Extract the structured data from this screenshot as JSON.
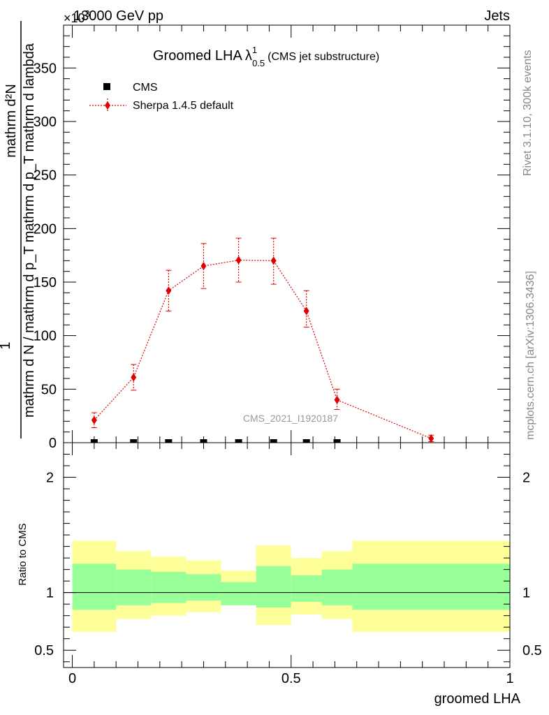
{
  "chart_data": [
    {
      "type": "scatter",
      "panel": "main",
      "title": "Groomed LHA",
      "title_symbol": "λ",
      "title_sup": "1",
      "title_sub": "0.5",
      "title_note": "(CMS jet substructure)",
      "top_left_label": "13000 GeV pp",
      "top_right_label": "Jets",
      "exponent_label": "×10",
      "exponent_power": "3",
      "ylabel_numerator": "mathrm d²N",
      "ylabel_denominator": "mathrm d N / mathrm d p_T mathrm d p_T mathrm d lambda",
      "ylabel_one": "1",
      "xlim": [
        -0.02,
        1.0
      ],
      "ylim": [
        0,
        390
      ],
      "y_ticks": [
        0,
        50,
        100,
        150,
        200,
        250,
        300,
        350
      ],
      "y_tick_labels": [
        "0",
        "50",
        "100",
        "150",
        "200",
        "250",
        "300",
        "350"
      ],
      "side_label_1": "Rivet 3.1.10,  300k events",
      "side_label_2": "mcplots.cern.ch [arXiv:1306.3436]",
      "watermark": "CMS_2021_I1920187",
      "legend": [
        {
          "name": "CMS",
          "marker": "square",
          "color": "#000000"
        },
        {
          "name": "Sherpa 1.4.5 default",
          "marker": "diamond",
          "color": "#e00000"
        }
      ],
      "series": [
        {
          "name": "CMS",
          "x": [
            0.05,
            0.14,
            0.22,
            0.3,
            0.38,
            0.46,
            0.535,
            0.605
          ],
          "y": [
            0,
            0,
            0,
            0,
            0,
            0,
            0,
            0
          ]
        },
        {
          "name": "Sherpa 1.4.5 default",
          "x": [
            0.05,
            0.14,
            0.22,
            0.3,
            0.38,
            0.46,
            0.535,
            0.605,
            0.82
          ],
          "y": [
            21,
            61,
            142,
            165,
            170.5,
            170,
            123,
            40,
            4
          ],
          "err_lo": [
            7,
            12,
            19,
            21,
            20.5,
            22,
            15,
            9,
            3
          ],
          "err_hi": [
            7,
            12,
            19,
            21,
            20.5,
            21,
            19,
            10,
            3
          ]
        }
      ]
    },
    {
      "type": "area",
      "panel": "ratio",
      "ylabel": "Ratio to CMS",
      "xlabel": "groomed LHA",
      "xlim": [
        -0.02,
        1.0
      ],
      "ylim": [
        0.35,
        2.3
      ],
      "y_ticks": [
        0.5,
        1,
        2
      ],
      "y_tick_labels": [
        "0.5",
        "1",
        "2"
      ],
      "x_ticks": [
        0,
        0.5,
        1
      ],
      "x_tick_labels": [
        "0",
        "0.5",
        "1"
      ],
      "reference_line": 1,
      "bands": [
        {
          "x0": 0.0,
          "x1": 0.1,
          "inner": [
            0.85,
            1.25
          ],
          "outer": [
            0.66,
            1.45
          ]
        },
        {
          "x0": 0.1,
          "x1": 0.18,
          "inner": [
            0.89,
            1.2
          ],
          "outer": [
            0.77,
            1.36
          ]
        },
        {
          "x0": 0.18,
          "x1": 0.26,
          "inner": [
            0.91,
            1.18
          ],
          "outer": [
            0.8,
            1.31
          ]
        },
        {
          "x0": 0.26,
          "x1": 0.34,
          "inner": [
            0.93,
            1.16
          ],
          "outer": [
            0.83,
            1.28
          ]
        },
        {
          "x0": 0.34,
          "x1": 0.42,
          "inner": [
            0.89,
            1.09
          ],
          "outer": [
            0.89,
            1.19
          ]
        },
        {
          "x0": 0.42,
          "x1": 0.5,
          "inner": [
            0.87,
            1.23
          ],
          "outer": [
            0.72,
            1.41
          ]
        },
        {
          "x0": 0.5,
          "x1": 0.57,
          "inner": [
            0.92,
            1.15
          ],
          "outer": [
            0.81,
            1.3
          ]
        },
        {
          "x0": 0.57,
          "x1": 0.64,
          "inner": [
            0.89,
            1.2
          ],
          "outer": [
            0.77,
            1.36
          ]
        },
        {
          "x0": 0.64,
          "x1": 1.0,
          "inner": [
            0.85,
            1.25
          ],
          "outer": [
            0.66,
            1.45
          ]
        }
      ],
      "band_colors": {
        "inner": "#99ff99",
        "outer": "#ffff99"
      }
    }
  ]
}
